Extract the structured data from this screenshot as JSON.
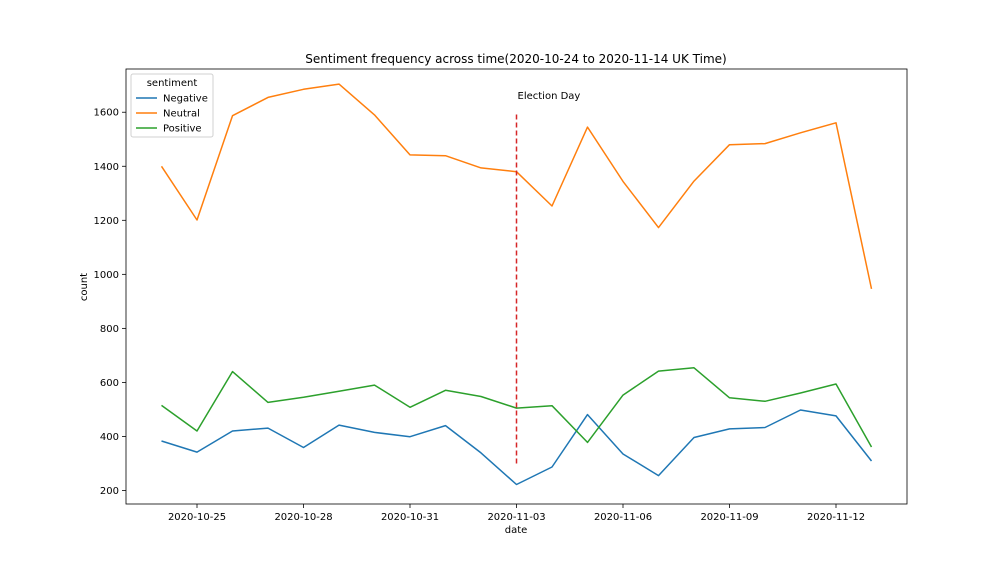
{
  "chart_data": {
    "type": "line",
    "title": "Sentiment frequency across time(2020-10-24 to 2020-11-14 UK Time)",
    "xlabel": "date",
    "ylabel": "count",
    "x": [
      "2020-10-24",
      "2020-10-25",
      "2020-10-26",
      "2020-10-27",
      "2020-10-28",
      "2020-10-29",
      "2020-10-30",
      "2020-10-31",
      "2020-11-01",
      "2020-11-02",
      "2020-11-03",
      "2020-11-04",
      "2020-11-05",
      "2020-11-06",
      "2020-11-07",
      "2020-11-08",
      "2020-11-09",
      "2020-11-10",
      "2020-11-11",
      "2020-11-12",
      "2020-11-13"
    ],
    "x_tick_labels": [
      "2020-10-25",
      "2020-10-28",
      "2020-10-31",
      "2020-11-03",
      "2020-11-06",
      "2020-11-09",
      "2020-11-12"
    ],
    "y_ticks": [
      200,
      400,
      600,
      800,
      1000,
      1200,
      1400,
      1600
    ],
    "xlim": [
      "2020-10-23",
      "2020-11-14"
    ],
    "ylim": [
      150,
      1760
    ],
    "grid": false,
    "legend": {
      "title": "sentiment",
      "placement": "top-left"
    },
    "series": [
      {
        "name": "Negative",
        "color": "#1f77b4",
        "values": [
          383,
          342,
          420,
          431,
          359,
          442,
          415,
          399,
          440,
          339,
          222,
          287,
          481,
          335,
          255,
          396,
          428,
          433,
          498,
          476,
          309
        ]
      },
      {
        "name": "Neutral",
        "color": "#ff7f0e",
        "values": [
          1400,
          1201,
          1587,
          1655,
          1685,
          1704,
          1590,
          1442,
          1439,
          1394,
          1380,
          1253,
          1545,
          1344,
          1173,
          1345,
          1480,
          1484,
          1524,
          1561,
          946
        ]
      },
      {
        "name": "Positive",
        "color": "#2ca02c",
        "values": [
          515,
          420,
          640,
          526,
          545,
          567,
          590,
          508,
          571,
          548,
          505,
          514,
          378,
          553,
          642,
          654,
          543,
          530,
          561,
          594,
          361
        ]
      }
    ],
    "annotations": [
      {
        "text": "Election Day",
        "x": "2020-11-03",
        "y_range": [
          300,
          1600
        ],
        "style": "dashed",
        "color": "#d62728"
      }
    ]
  }
}
